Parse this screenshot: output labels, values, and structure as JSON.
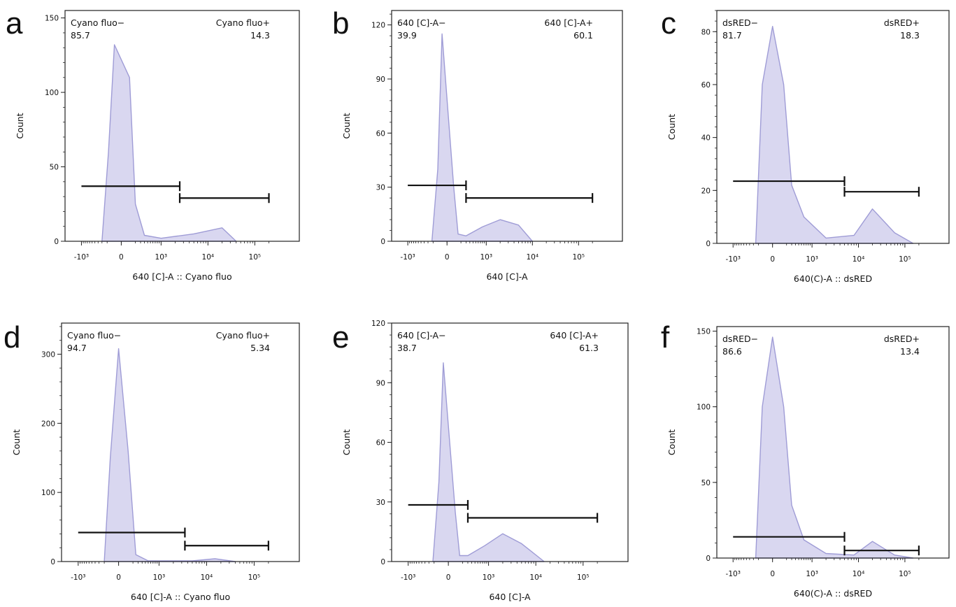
{
  "chart_data": [
    {
      "type": "area",
      "panel": "a",
      "xlabel": "640 [C]-A :: Cyano fluo",
      "ylabel": "Count",
      "x_scale": "biexponential",
      "x_ticks": [
        "-10³",
        "0",
        "10³",
        "10⁴",
        "10⁵"
      ],
      "y_ticks": [
        0,
        50,
        100,
        150
      ],
      "ylim": [
        0,
        155
      ],
      "gates": [
        {
          "name": "Cyano fluo−",
          "percent": "85.7",
          "x_range": [
            "-10^3",
            "2500"
          ],
          "y": 37
        },
        {
          "name": "Cyano fluo+",
          "percent": "14.3",
          "x_range": [
            "2500",
            "2x10^5"
          ],
          "y": 29
        }
      ],
      "series": [
        {
          "x": [
            "-200",
            "-80",
            "-20",
            "30",
            "100",
            "300",
            "1000",
            "5000",
            "20000",
            "40000"
          ],
          "values": [
            0,
            60,
            132,
            110,
            25,
            4,
            2,
            5,
            9,
            0
          ]
        }
      ],
      "colors": {
        "fill": "#d9d7f0",
        "line": "#9f9cd6"
      }
    },
    {
      "type": "area",
      "panel": "b",
      "xlabel": "640 [C]-A",
      "ylabel": "Count",
      "x_scale": "biexponential",
      "x_ticks": [
        "-10³",
        "0",
        "10³",
        "10⁴",
        "10⁵"
      ],
      "y_ticks": [
        0,
        30,
        60,
        90,
        120
      ],
      "ylim": [
        0,
        128
      ],
      "gates": [
        {
          "name": "640 [C]-A−",
          "percent": "39.9",
          "x_range": [
            "-10^3",
            "200"
          ],
          "y": 31
        },
        {
          "name": "640 [C]-A+",
          "percent": "60.1",
          "x_range": [
            "200",
            "2x10^5"
          ],
          "y": 24
        }
      ],
      "series": [
        {
          "x": [
            "-120",
            "-40",
            "-10",
            "20",
            "60",
            "200",
            "800",
            "2000",
            "5000",
            "10000"
          ],
          "values": [
            0,
            40,
            115,
            30,
            4,
            3,
            8,
            12,
            9,
            0
          ]
        }
      ],
      "colors": {
        "fill": "#d9d7f0",
        "line": "#9f9cd6"
      }
    },
    {
      "type": "area",
      "panel": "c",
      "xlabel": "640(C)-A :: dsRED",
      "ylabel": "Count",
      "x_scale": "biexponential",
      "x_ticks": [
        "-10³",
        "0",
        "10³",
        "10⁴",
        "10⁵"
      ],
      "y_ticks": [
        0,
        20,
        40,
        60,
        80
      ],
      "ylim": [
        0,
        88
      ],
      "gates": [
        {
          "name": "dsRED−",
          "percent": "81.7",
          "x_range": [
            "-10^3",
            "5000"
          ],
          "y": 23.5
        },
        {
          "name": "dsRED+",
          "percent": "18.3",
          "x_range": [
            "5000",
            "2x10^5"
          ],
          "y": 19.5
        }
      ],
      "series": [
        {
          "x": [
            "-150",
            "-50",
            "0",
            "60",
            "200",
            "600",
            "2000",
            "8000",
            "20000",
            "60000",
            "150000"
          ],
          "values": [
            0,
            60,
            82,
            60,
            22,
            10,
            2,
            3,
            13,
            4,
            0
          ]
        }
      ],
      "colors": {
        "fill": "#d9d7f0",
        "line": "#9f9cd6"
      }
    },
    {
      "type": "area",
      "panel": "d",
      "xlabel": "640 [C]-A :: Cyano fluo",
      "ylabel": "Count",
      "x_scale": "biexponential",
      "x_ticks": [
        "-10³",
        "0",
        "10³",
        "10⁴",
        "10⁵"
      ],
      "y_ticks": [
        0,
        100,
        200,
        300
      ],
      "ylim": [
        0,
        345
      ],
      "gates": [
        {
          "name": "Cyano fluo−",
          "percent": "94.7",
          "x_range": [
            "-10^3",
            "3500"
          ],
          "y": 42
        },
        {
          "name": "Cyano fluo+",
          "percent": "5.34",
          "x_range": [
            "3500",
            "2x10^5"
          ],
          "y": 23
        }
      ],
      "series": [
        {
          "x": [
            "-100",
            "-30",
            "0",
            "40",
            "150",
            "500",
            "5000",
            "15000",
            "40000"
          ],
          "values": [
            0,
            150,
            308,
            160,
            10,
            1,
            1,
            4,
            0
          ]
        }
      ],
      "colors": {
        "fill": "#d9d7f0",
        "line": "#9f9cd6"
      }
    },
    {
      "type": "area",
      "panel": "e",
      "xlabel": "640 [C]-A",
      "ylabel": "Count",
      "x_scale": "biexponential",
      "x_ticks": [
        "-10³",
        "0",
        "10³",
        "10⁴",
        "10⁵"
      ],
      "y_ticks": [
        0,
        30,
        60,
        90,
        120
      ],
      "ylim": [
        0,
        120
      ],
      "gates": [
        {
          "name": "640 [C]-A−",
          "percent": "38.7",
          "x_range": [
            "-10^3",
            "200"
          ],
          "y": 28.5
        },
        {
          "name": "640 [C]-A+",
          "percent": "61.3",
          "x_range": [
            "200",
            "2x10^5"
          ],
          "y": 22
        }
      ],
      "series": [
        {
          "x": [
            "-120",
            "-40",
            "-10",
            "20",
            "60",
            "200",
            "800",
            "2000",
            "5000",
            "15000"
          ],
          "values": [
            0,
            40,
            100,
            25,
            3,
            3,
            8,
            14,
            9,
            0
          ]
        }
      ],
      "colors": {
        "fill": "#d9d7f0",
        "line": "#9f9cd6"
      }
    },
    {
      "type": "area",
      "panel": "f",
      "xlabel": "640(C)-A :: dsRED",
      "ylabel": "Count",
      "x_scale": "biexponential",
      "x_ticks": [
        "-10³",
        "0",
        "10³",
        "10⁴",
        "10⁵"
      ],
      "y_ticks": [
        0,
        50,
        100,
        150
      ],
      "ylim": [
        0,
        153
      ],
      "gates": [
        {
          "name": "dsRED−",
          "percent": "86.6",
          "x_range": [
            "-10^3",
            "5000"
          ],
          "y": 14
        },
        {
          "name": "dsRED+",
          "percent": "13.4",
          "x_range": [
            "5000",
            "2x10^5"
          ],
          "y": 5
        }
      ],
      "series": [
        {
          "x": [
            "-150",
            "-50",
            "0",
            "60",
            "200",
            "600",
            "2000",
            "8000",
            "20000",
            "60000",
            "150000"
          ],
          "values": [
            0,
            100,
            146,
            100,
            35,
            12,
            3,
            2,
            11,
            2,
            0
          ]
        }
      ],
      "colors": {
        "fill": "#d9d7f0",
        "line": "#9f9cd6"
      }
    }
  ]
}
